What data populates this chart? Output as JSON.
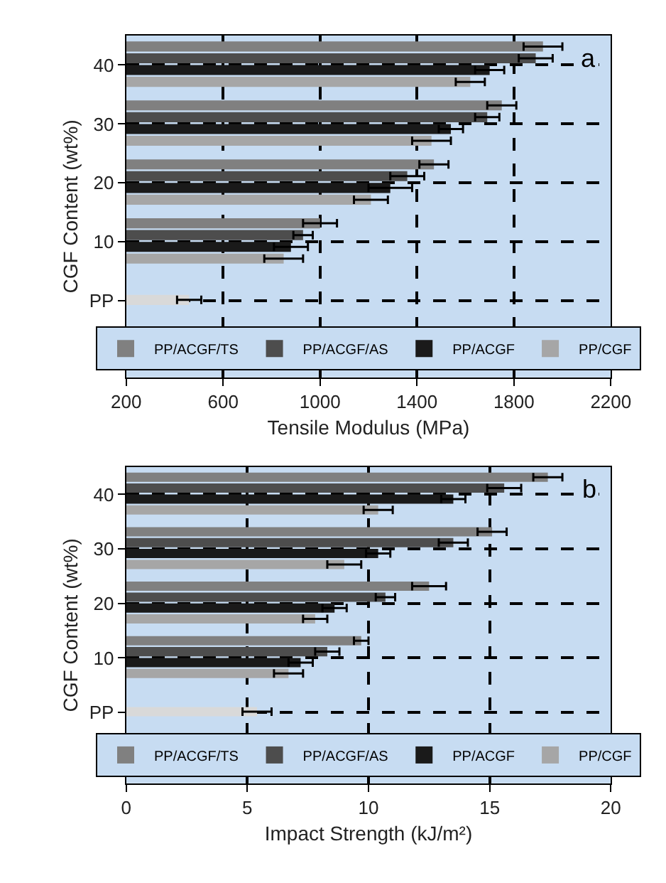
{
  "chart_data": [
    {
      "type": "bar",
      "orientation": "horizontal",
      "xlabel": "Tensile Modulus (MPa)",
      "ylabel": "CGF Content (wt%)",
      "categories": [
        "40",
        "30",
        "20",
        "10",
        "PP"
      ],
      "xlim": [
        200,
        2200
      ],
      "xticks": [
        200,
        600,
        1000,
        1400,
        1800,
        2200
      ],
      "grid": true,
      "legend": "bottom",
      "annotations": [
        "a"
      ],
      "series": [
        {
          "name": "PP/ACGF/TS",
          "color": "#808080",
          "values": [
            1920,
            1750,
            1470,
            1000,
            null
          ],
          "errors": [
            80,
            60,
            60,
            70,
            null
          ]
        },
        {
          "name": "PP/ACGF/AS",
          "color": "#4d4d4d",
          "values": [
            1890,
            1690,
            1360,
            930,
            null
          ],
          "errors": [
            70,
            50,
            70,
            40,
            null
          ]
        },
        {
          "name": "PP/ACGF",
          "color": "#1a1a1a",
          "values": [
            1700.0,
            1540,
            1290,
            880,
            null
          ],
          "errors": [
            60,
            50,
            90,
            70,
            null
          ]
        },
        {
          "name": "PP/CGF",
          "color": "#a6a6a6",
          "values": [
            1620,
            1460,
            1210,
            850,
            null
          ],
          "errors": [
            60,
            80,
            70,
            80,
            null
          ]
        },
        {
          "color": "#d9d9d9",
          "values": [
            null,
            null,
            null,
            null,
            460
          ],
          "errors": [
            null,
            null,
            null,
            null,
            50
          ]
        }
      ]
    },
    {
      "type": "bar",
      "orientation": "horizontal",
      "xlabel": "Impact Strength (kJ/m²)",
      "ylabel": "CGF Content (wt%)",
      "categories": [
        "40",
        "30",
        "20",
        "10",
        "PP"
      ],
      "xlim": [
        0,
        20
      ],
      "xticks": [
        0,
        5,
        10,
        15,
        20
      ],
      "grid": true,
      "legend": "bottom",
      "annotations": [
        "b"
      ],
      "series": [
        {
          "name": "PP/ACGF/TS",
          "color": "#808080",
          "values": [
            17.4,
            15.1,
            12.5,
            9.7,
            null
          ],
          "errors": [
            0.6,
            0.6,
            0.7,
            0.3,
            null
          ]
        },
        {
          "name": "PP/ACGF/AS",
          "color": "#4d4d4d",
          "values": [
            15.6,
            13.5,
            10.7,
            8.3,
            null
          ],
          "errors": [
            0.7,
            0.6,
            0.4,
            0.5,
            null
          ]
        },
        {
          "name": "PP/ACGF",
          "color": "#1a1a1a",
          "values": [
            13.5,
            10.4,
            8.6,
            7.2,
            null
          ],
          "errors": [
            0.5,
            0.5,
            0.5,
            0.5,
            null
          ]
        },
        {
          "name": "PP/CGF",
          "color": "#a6a6a6",
          "values": [
            10.4,
            9.0,
            7.8,
            6.7,
            null
          ],
          "errors": [
            0.6,
            0.7,
            0.5,
            0.6,
            null
          ]
        },
        {
          "color": "#d9d9d9",
          "values": [
            null,
            null,
            null,
            null,
            5.4
          ],
          "errors": [
            null,
            null,
            null,
            null,
            0.6
          ]
        }
      ]
    }
  ]
}
